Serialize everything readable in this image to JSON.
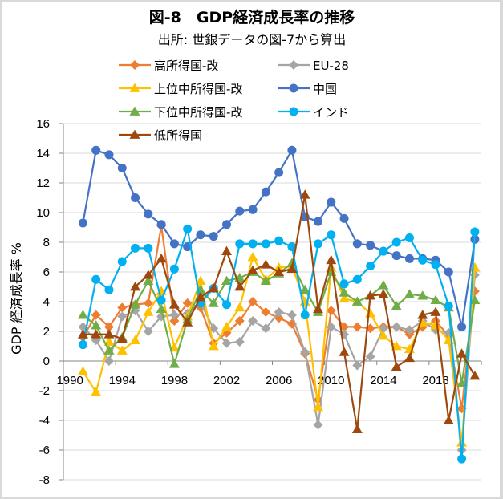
{
  "chart_data": {
    "type": "line",
    "title": "図-8　GDP経済成長率の推移",
    "subtitle": "出所: 世銀データの図-7から算出",
    "xlabel": "",
    "ylabel": "GDP 経済成長率 %",
    "ylim": [
      -8,
      16
    ],
    "yticks": [
      -8,
      -6,
      -4,
      -2,
      0,
      2,
      4,
      6,
      8,
      10,
      12,
      14,
      16
    ],
    "ytick_labels": [
      "-8",
      "-6",
      "-4",
      "-2",
      "0",
      "2",
      "4",
      "6",
      "8",
      "10",
      "12",
      "14",
      "16"
    ],
    "grid": true,
    "legend_position": "top",
    "x": [
      1990,
      1991,
      1992,
      1993,
      1994,
      1995,
      1996,
      1997,
      1998,
      1999,
      2000,
      2001,
      2002,
      2003,
      2004,
      2005,
      2006,
      2007,
      2008,
      2009,
      2010,
      2011,
      2012,
      2013,
      2014,
      2015,
      2016,
      2017,
      2018,
      2019,
      2020,
      2021
    ],
    "xtick_labels": [
      "1990",
      "1994",
      "1998",
      "2002",
      "2006",
      "2010",
      "2014",
      "2018"
    ],
    "series": [
      {
        "name": "高所得国-改",
        "color": "#ED7D31",
        "marker": "diamond",
        "values": [
          null,
          1.6,
          3.1,
          2.3,
          3.6,
          3.8,
          3.9,
          9.1,
          2.7,
          3.9,
          3.6,
          1.2,
          1.9,
          2.7,
          4.0,
          3.3,
          2.9,
          2.5,
          0.5,
          -2.6,
          3.4,
          2.3,
          2.3,
          2.2,
          2.3,
          2.3,
          1.8,
          2.3,
          2.7,
          1.7,
          -3.2,
          4.7
        ]
      },
      {
        "name": "EU-28",
        "color": "#A5A5A5",
        "marker": "diamond",
        "values": [
          null,
          2.3,
          1.4,
          0.0,
          3.0,
          3.4,
          2.0,
          3.0,
          3.1,
          3.2,
          3.9,
          2.2,
          1.2,
          1.3,
          2.7,
          2.2,
          3.3,
          3.1,
          0.6,
          -4.3,
          2.3,
          1.8,
          -0.3,
          0.3,
          2.2,
          2.3,
          2.1,
          2.7,
          2.1,
          1.9,
          -6.0,
          5.8
        ]
      },
      {
        "name": "上位中所得国-改",
        "color": "#FFC000",
        "marker": "triangle",
        "values": [
          null,
          -0.7,
          -2.1,
          1.3,
          0.7,
          1.4,
          3.3,
          4.7,
          0.9,
          3.0,
          5.4,
          1.0,
          2.3,
          3.6,
          7.0,
          5.5,
          6.3,
          6.4,
          4.0,
          -3.1,
          6.3,
          4.2,
          4.0,
          3.2,
          1.7,
          1.0,
          0.8,
          2.6,
          2.4,
          1.4,
          -5.5,
          6.3
        ]
      },
      {
        "name": "中国",
        "color": "#4472C4",
        "marker": "circle",
        "values": [
          null,
          9.3,
          14.2,
          13.9,
          13.0,
          11.0,
          9.9,
          9.2,
          7.9,
          7.7,
          8.5,
          8.4,
          9.2,
          10.1,
          10.2,
          11.4,
          12.7,
          14.2,
          9.7,
          9.4,
          10.7,
          9.6,
          7.9,
          7.8,
          7.4,
          7.1,
          6.9,
          6.9,
          6.8,
          6.0,
          2.3,
          8.2
        ]
      },
      {
        "name": "下位中所得国-改",
        "color": "#70AD47",
        "marker": "triangle",
        "values": [
          null,
          3.1,
          2.4,
          0.7,
          1.6,
          3.8,
          5.4,
          3.5,
          -0.2,
          2.8,
          4.8,
          3.9,
          5.4,
          5.6,
          6.0,
          5.4,
          5.9,
          6.6,
          4.8,
          3.3,
          6.0,
          4.6,
          4.0,
          4.4,
          5.1,
          3.7,
          4.5,
          4.4,
          4.1,
          3.6,
          -1.5,
          4.1
        ]
      },
      {
        "name": "インド",
        "color": "#00B0F0",
        "marker": "circle",
        "values": [
          null,
          1.1,
          5.5,
          4.8,
          6.7,
          7.6,
          7.6,
          4.1,
          6.2,
          8.9,
          3.9,
          4.9,
          3.8,
          7.9,
          7.9,
          7.9,
          8.1,
          7.7,
          3.1,
          7.9,
          8.5,
          5.2,
          5.5,
          6.4,
          7.4,
          8.0,
          8.3,
          6.8,
          6.5,
          3.7,
          -6.6,
          8.7
        ]
      },
      {
        "name": "低所得国",
        "color": "#9E480E",
        "marker": "triangle",
        "values": [
          null,
          1.8,
          1.8,
          1.8,
          1.5,
          5.0,
          5.8,
          6.9,
          3.8,
          2.6,
          4.3,
          4.9,
          7.4,
          5.0,
          6.1,
          6.5,
          6.0,
          6.2,
          11.2,
          3.5,
          6.8,
          0.6,
          -4.6,
          4.4,
          4.5,
          -0.4,
          0.2,
          3.1,
          3.3,
          -4.0,
          0.5,
          -1.0
        ]
      }
    ]
  }
}
